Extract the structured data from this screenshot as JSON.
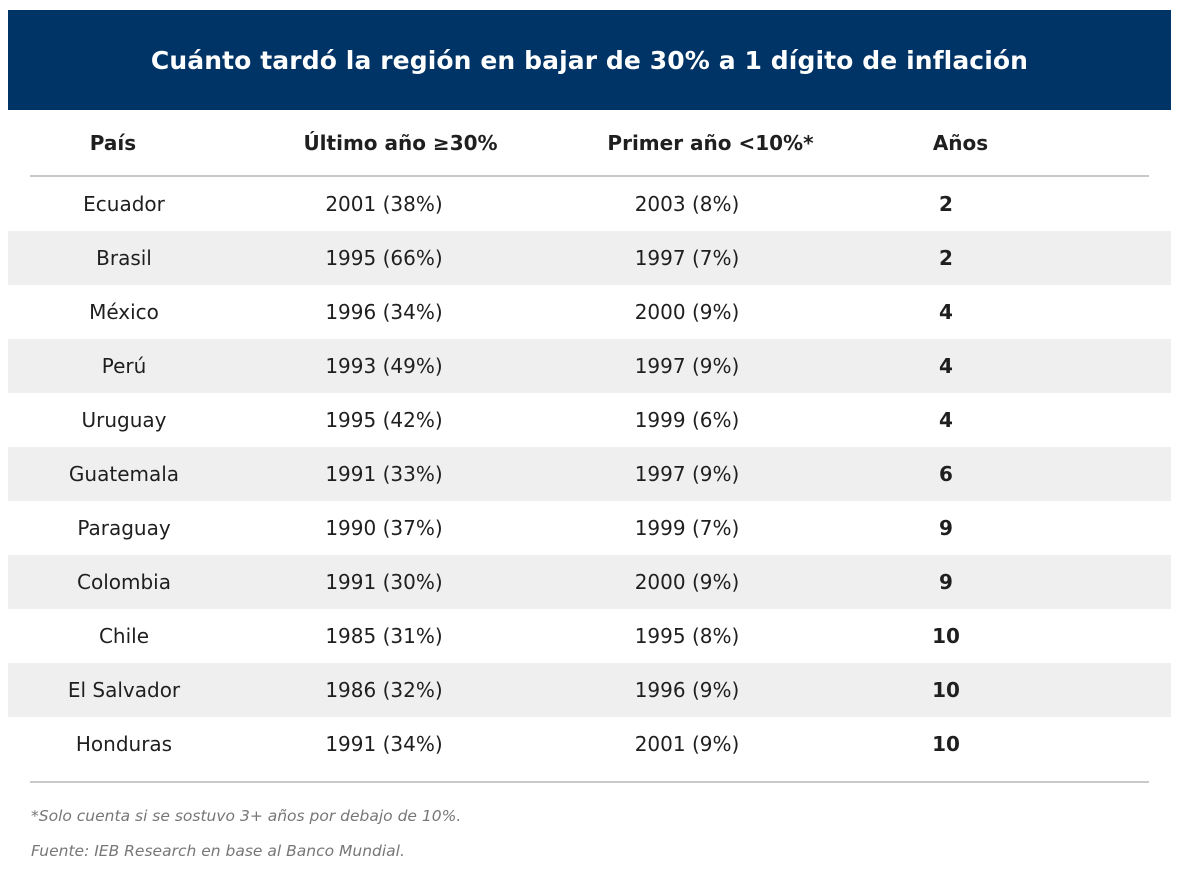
{
  "chart_data": {
    "type": "table",
    "title": "Cuánto tardó la región en bajar de 30% a 1 dígito de inflación",
    "columns": [
      "País",
      "Último año ≥30%",
      "Primer año <10%*",
      "Años"
    ],
    "rows": [
      {
        "pais": "Ecuador",
        "ultimo": "2001 (38%)",
        "primer": "2003 (8%)",
        "anios": "2"
      },
      {
        "pais": "Brasil",
        "ultimo": "1995 (66%)",
        "primer": "1997 (7%)",
        "anios": "2"
      },
      {
        "pais": "México",
        "ultimo": "1996 (34%)",
        "primer": "2000 (9%)",
        "anios": "4"
      },
      {
        "pais": "Perú",
        "ultimo": "1993 (49%)",
        "primer": "1997 (9%)",
        "anios": "4"
      },
      {
        "pais": "Uruguay",
        "ultimo": "1995 (42%)",
        "primer": "1999 (6%)",
        "anios": "4"
      },
      {
        "pais": "Guatemala",
        "ultimo": "1991 (33%)",
        "primer": "1997 (9%)",
        "anios": "6"
      },
      {
        "pais": "Paraguay",
        "ultimo": "1990 (37%)",
        "primer": "1999 (7%)",
        "anios": "9"
      },
      {
        "pais": "Colombia",
        "ultimo": "1991 (30%)",
        "primer": "2000 (9%)",
        "anios": "9"
      },
      {
        "pais": "Chile",
        "ultimo": "1985 (31%)",
        "primer": "1995 (8%)",
        "anios": "10"
      },
      {
        "pais": "El Salvador",
        "ultimo": "1986 (32%)",
        "primer": "1996 (9%)",
        "anios": "10"
      },
      {
        "pais": "Honduras",
        "ultimo": "1991 (34%)",
        "primer": "2001 (9%)",
        "anios": "10"
      }
    ],
    "footnote": "*Solo cuenta si se sostuvo 3+ años por debajo de 10%.",
    "source": "Fuente: IEB Research en base al Banco Mundial."
  },
  "colors": {
    "header_bg": "#003366",
    "stripe": "#efefef"
  }
}
